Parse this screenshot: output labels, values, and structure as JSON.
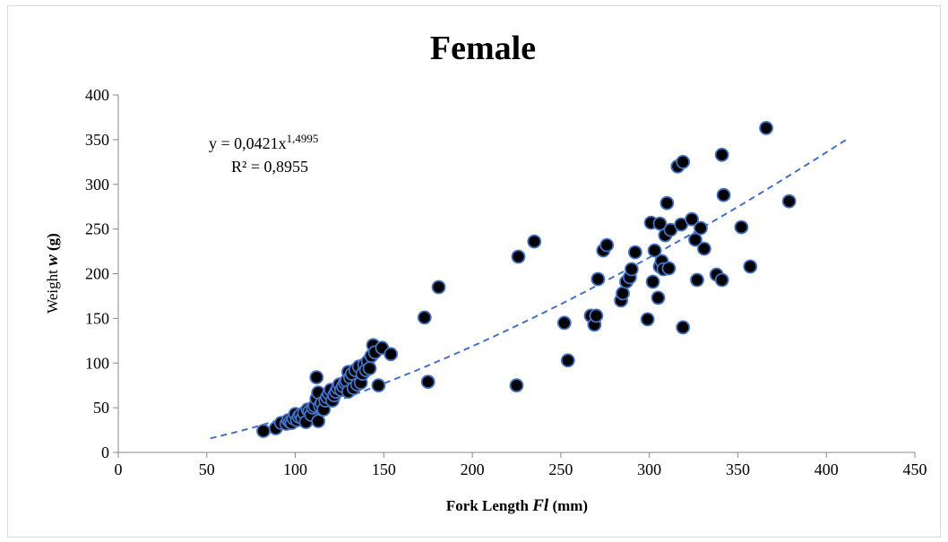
{
  "chart_data": {
    "type": "scatter",
    "title": "Female",
    "xlabel": {
      "prefix": "Fork Length ",
      "symbol": "Fl",
      "suffix": " (mm)"
    },
    "ylabel": {
      "prefix": "Weight ",
      "symbol": "w",
      "suffix": " (g)"
    },
    "xlim": [
      0,
      450
    ],
    "ylim": [
      0,
      400
    ],
    "xticks": [
      "0",
      "50",
      "100",
      "150",
      "200",
      "250",
      "300",
      "350",
      "400",
      "450"
    ],
    "yticks": [
      "0",
      "50",
      "100",
      "150",
      "200",
      "250",
      "300",
      "350",
      "400"
    ],
    "grid": false,
    "trendline": {
      "type": "power",
      "a": 0.0421,
      "b": 1.4995,
      "x_range": [
        52,
        412
      ],
      "equation_prefix": "y = 0,0421x",
      "equation_exponent": "1,4995",
      "r2_text": "R² = 0,8955",
      "color": "#4472c4"
    },
    "marker_fill": "#000000",
    "marker_stroke": "#4472c4",
    "points": [
      [
        82,
        24
      ],
      [
        89,
        27
      ],
      [
        92,
        33
      ],
      [
        95,
        32
      ],
      [
        96,
        36
      ],
      [
        97,
        34
      ],
      [
        98,
        33
      ],
      [
        99,
        38
      ],
      [
        100,
        43
      ],
      [
        101,
        36
      ],
      [
        102,
        40
      ],
      [
        103,
        42
      ],
      [
        104,
        38
      ],
      [
        105,
        44
      ],
      [
        106,
        34
      ],
      [
        107,
        48
      ],
      [
        108,
        46
      ],
      [
        109,
        42
      ],
      [
        110,
        50
      ],
      [
        111,
        52
      ],
      [
        112,
        84
      ],
      [
        112,
        60
      ],
      [
        113,
        67
      ],
      [
        113,
        35
      ],
      [
        114,
        52
      ],
      [
        115,
        55
      ],
      [
        116,
        48
      ],
      [
        117,
        58
      ],
      [
        118,
        62
      ],
      [
        119,
        66
      ],
      [
        120,
        70
      ],
      [
        121,
        58
      ],
      [
        122,
        64
      ],
      [
        123,
        68
      ],
      [
        124,
        72
      ],
      [
        125,
        76
      ],
      [
        126,
        70
      ],
      [
        127,
        74
      ],
      [
        128,
        78
      ],
      [
        129,
        80
      ],
      [
        130,
        68
      ],
      [
        130,
        90
      ],
      [
        131,
        84
      ],
      [
        132,
        88
      ],
      [
        133,
        72
      ],
      [
        134,
        92
      ],
      [
        135,
        76
      ],
      [
        136,
        96
      ],
      [
        137,
        78
      ],
      [
        138,
        88
      ],
      [
        139,
        98
      ],
      [
        140,
        92
      ],
      [
        141,
        102
      ],
      [
        142,
        94
      ],
      [
        143,
        108
      ],
      [
        144,
        120
      ],
      [
        145,
        112
      ],
      [
        147,
        75
      ],
      [
        149,
        117
      ],
      [
        154,
        110
      ],
      [
        173,
        151
      ],
      [
        175,
        79
      ],
      [
        181,
        185
      ],
      [
        225,
        75
      ],
      [
        226,
        219
      ],
      [
        235,
        236
      ],
      [
        252,
        145
      ],
      [
        254,
        103
      ],
      [
        267,
        153
      ],
      [
        269,
        143
      ],
      [
        270,
        153
      ],
      [
        271,
        194
      ],
      [
        274,
        226
      ],
      [
        276,
        232
      ],
      [
        284,
        170
      ],
      [
        285,
        178
      ],
      [
        287,
        191
      ],
      [
        289,
        196
      ],
      [
        290,
        205
      ],
      [
        292,
        224
      ],
      [
        299,
        149
      ],
      [
        301,
        257
      ],
      [
        302,
        191
      ],
      [
        303,
        226
      ],
      [
        305,
        173
      ],
      [
        306,
        256
      ],
      [
        306,
        208
      ],
      [
        307,
        214
      ],
      [
        308,
        205
      ],
      [
        309,
        243
      ],
      [
        310,
        279
      ],
      [
        311,
        206
      ],
      [
        312,
        249
      ],
      [
        316,
        320
      ],
      [
        318,
        255
      ],
      [
        319,
        325
      ],
      [
        319,
        140
      ],
      [
        324,
        261
      ],
      [
        326,
        238
      ],
      [
        327,
        193
      ],
      [
        329,
        251
      ],
      [
        331,
        228
      ],
      [
        338,
        199
      ],
      [
        341,
        193
      ],
      [
        341,
        333
      ],
      [
        342,
        288
      ],
      [
        352,
        252
      ],
      [
        357,
        208
      ],
      [
        366,
        363
      ],
      [
        379,
        281
      ]
    ]
  }
}
